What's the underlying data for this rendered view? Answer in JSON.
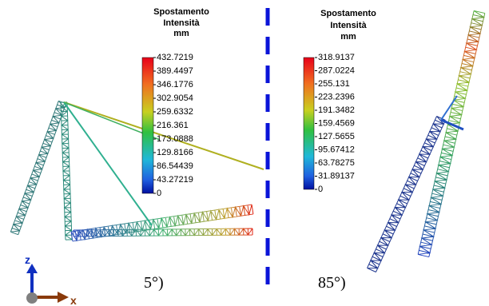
{
  "left_legend": {
    "title": [
      "Spostamento",
      "Intensità",
      "mm"
    ],
    "labels": [
      "432.7219",
      "389.4497",
      "346.1776",
      "302.9054",
      "259.6332",
      "216.361",
      "173.0888",
      "129.8166",
      "86.54439",
      "43.27219",
      "0"
    ]
  },
  "right_legend": {
    "title": [
      "Spostamento",
      "Intensità",
      "mm"
    ],
    "labels": [
      "318.9137",
      "287.0224",
      "255.131",
      "223.2396",
      "191.3482",
      "159.4569",
      "127.5655",
      "95.67412",
      "63.78275",
      "31.89137",
      "0"
    ]
  },
  "captions": [
    "5°)",
    "85°)"
  ],
  "axes": {
    "z": "z",
    "x": "x"
  }
}
